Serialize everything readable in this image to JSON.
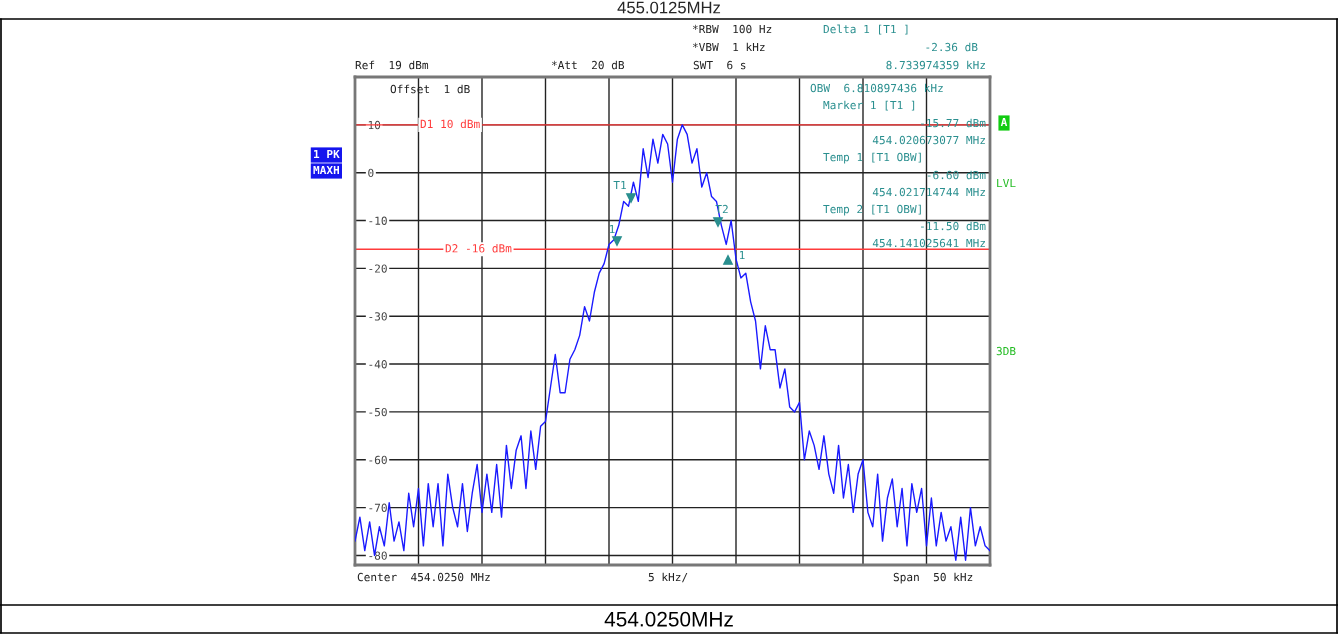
{
  "chart_data": {
    "type": "line",
    "title": "455.0125MHz",
    "categories": [
      null,
      null,
      null,
      null,
      null,
      null,
      null,
      null,
      null,
      null,
      null,
      null,
      null,
      null,
      null,
      null,
      null,
      null,
      null,
      null,
      null,
      null,
      null,
      null,
      null,
      null,
      null,
      null,
      null,
      null,
      null,
      null,
      null,
      null,
      null,
      null,
      null,
      null,
      null,
      null,
      null,
      null,
      null,
      null,
      null,
      null,
      null,
      null,
      null,
      null,
      null,
      null,
      null,
      null,
      null,
      null,
      null,
      null,
      null,
      null,
      null,
      null,
      null,
      null,
      null,
      null,
      null,
      null,
      null,
      null,
      null,
      null,
      null,
      null,
      null,
      null,
      null,
      null,
      null,
      null,
      null,
      null,
      null,
      null,
      null,
      null,
      null,
      null,
      null,
      null,
      null,
      null,
      null,
      null,
      null,
      null,
      null,
      null,
      null,
      null,
      null,
      null,
      null,
      null,
      null,
      null,
      null,
      null,
      null,
      null,
      null,
      null,
      null,
      null,
      null,
      null,
      null,
      null,
      null,
      null,
      null,
      null,
      null,
      null,
      null,
      null,
      null,
      null,
      null,
      null,
      null
    ],
    "series": [
      {
        "color": "#1a1aff",
        "values": [
          -77,
          -72,
          -79,
          -73,
          -80,
          -74,
          -78,
          -69,
          -77,
          -73,
          -79,
          -67,
          -74,
          -66,
          -78,
          -65,
          -74,
          -65,
          -78,
          -63,
          -70,
          -74,
          -65,
          -75,
          -67,
          -61,
          -71,
          -63,
          -71,
          -61,
          -72,
          -57,
          -66,
          -58,
          -55,
          -66,
          -54,
          -62,
          -53,
          -52,
          -45,
          -38,
          -46,
          -46,
          -39,
          -37,
          -34,
          -28,
          -31,
          -25,
          -21,
          -19,
          -15,
          -14,
          -11,
          -6,
          -7,
          -2,
          -6,
          5,
          -1,
          7,
          2,
          8,
          6,
          -2,
          7,
          10,
          8,
          2,
          5,
          -3,
          0,
          -5,
          -6,
          -11,
          -15,
          -10,
          -18,
          -22,
          -21,
          -27,
          -31,
          -41,
          -32,
          -37,
          -37,
          -45,
          -41,
          -49,
          -50,
          -48,
          -60,
          -54,
          -57,
          -62,
          -55,
          -63,
          -67,
          -57,
          -68,
          -61,
          -71,
          -63,
          -60,
          -71,
          -74,
          -63,
          -77,
          -68,
          -64,
          -74,
          -66,
          -78,
          -65,
          -71,
          -66,
          -78,
          -68,
          -78,
          -71,
          -77,
          -74,
          -81,
          -72,
          -81,
          -70,
          -78,
          -74,
          -78,
          -79
        ]
      }
    ],
    "ylim": [
      -82,
      20
    ],
    "yticks": [
      10,
      0,
      -10,
      -20,
      -30,
      -40,
      -50,
      -60,
      -70,
      -80
    ],
    "tick_labels": "y",
    "grid": true,
    "ref_lines": [
      {
        "axis": "y",
        "value": 10,
        "label": "D1 10 dBm",
        "color": "#ff3b3b"
      },
      {
        "axis": "y",
        "value": -16,
        "label": "D2 -16 dBm",
        "color": "#ff3b3b"
      }
    ],
    "annotations": [
      "*RBW  100 Hz",
      "*VBW  1 kHz",
      "Ref  19 dBm",
      "*Att  20 dB",
      "SWT  6 s",
      "Delta 1 [T1 ]",
      "-2.36 dB",
      "8.733974359 kHz",
      "OBW  6.810897436 kHz",
      "Marker 1 [T1 ]",
      "-15.77 dBm",
      "454.020673077 MHz",
      "Temp 1 [T1 OBW]",
      "-6.60 dBm",
      "454.021714744 MHz",
      "Temp 2 [T1 OBW]",
      "-11.50 dBm",
      "454.141025641 MHz",
      "Offset  1 dB",
      "1 PK",
      "MAXH",
      "A",
      "LVL",
      "3DB",
      "Center  454.0250 MHz",
      "5 kHz/",
      "Span  50 kHz",
      "454.0250MHz",
      "1",
      "T1",
      "T2",
      "1"
    ]
  }
}
